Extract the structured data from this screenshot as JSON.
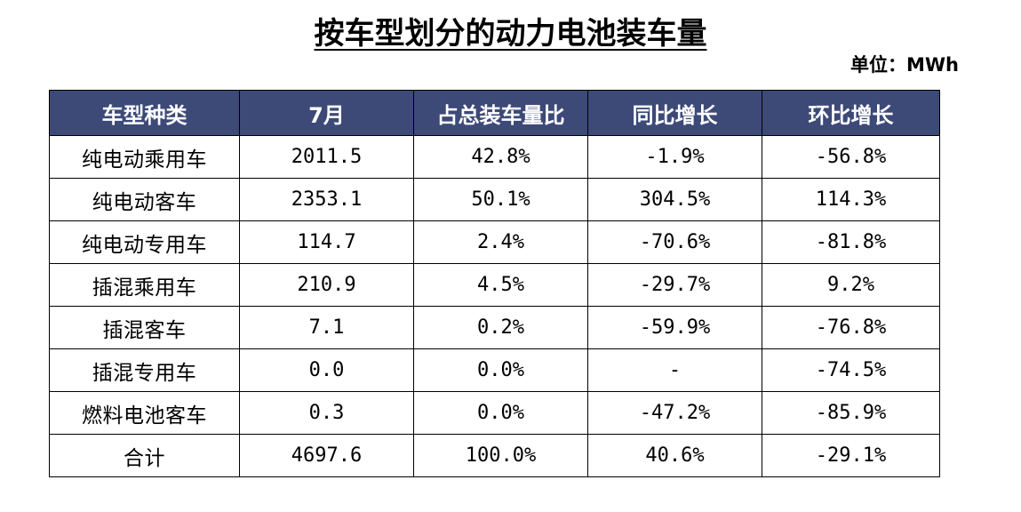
{
  "title": "按车型划分的动力电池装车量",
  "unit_label": "单位：MWh",
  "colors": {
    "header_bg": "#3d4a78",
    "header_text": "#ffffff",
    "border": "#000000"
  },
  "table": {
    "headers": [
      "车型种类",
      "7月",
      "占总装车量比",
      "同比增长",
      "环比增长"
    ],
    "rows": [
      [
        "纯电动乘用车",
        "2011.5",
        "42.8%",
        "-1.9%",
        "-56.8%"
      ],
      [
        "纯电动客车",
        "2353.1",
        "50.1%",
        "304.5%",
        "114.3%"
      ],
      [
        "纯电动专用车",
        "114.7",
        "2.4%",
        "-70.6%",
        "-81.8%"
      ],
      [
        "插混乘用车",
        "210.9",
        "4.5%",
        "-29.7%",
        "9.2%"
      ],
      [
        "插混客车",
        "7.1",
        "0.2%",
        "-59.9%",
        "-76.8%"
      ],
      [
        "插混专用车",
        "0.0",
        "0.0%",
        "-",
        "-74.5%"
      ],
      [
        "燃料电池客车",
        "0.3",
        "0.0%",
        "-47.2%",
        "-85.9%"
      ],
      [
        "合计",
        "4697.6",
        "100.0%",
        "40.6%",
        "-29.1%"
      ]
    ]
  }
}
